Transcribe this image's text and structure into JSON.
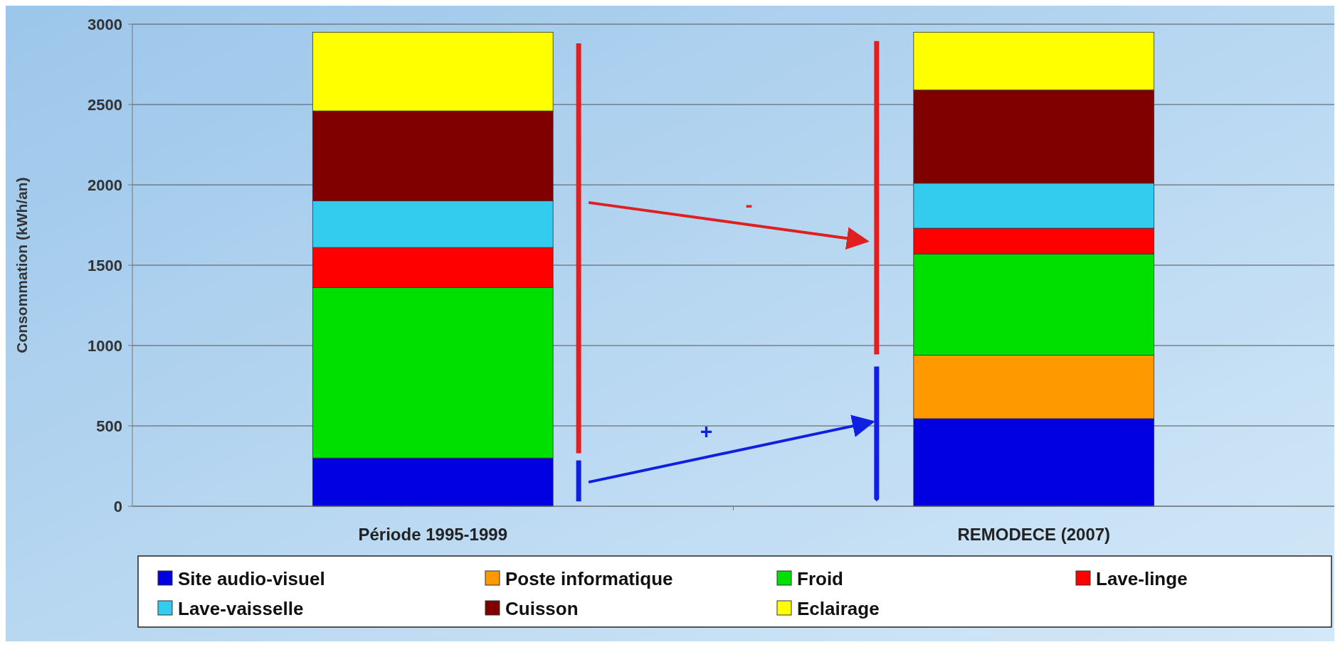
{
  "chart_data": {
    "type": "bar",
    "stacked": true,
    "ylabel": "Consommation (kWh/an)",
    "categories": [
      "Période 1995-1999",
      "REMODECE (2007)"
    ],
    "series": [
      {
        "name": "Site audio-visuel",
        "color": "#0000e0",
        "values": [
          300,
          545
        ]
      },
      {
        "name": "Poste informatique",
        "color": "#ff9900",
        "values": [
          0,
          395
        ]
      },
      {
        "name": "Froid",
        "color": "#00e000",
        "values": [
          1060,
          630
        ]
      },
      {
        "name": "Lave-linge",
        "color": "#ff0000",
        "values": [
          250,
          160
        ]
      },
      {
        "name": "Lave-vaisselle",
        "color": "#33ccee",
        "values": [
          290,
          280
        ]
      },
      {
        "name": "Cuisson",
        "color": "#800000",
        "values": [
          560,
          580
        ]
      },
      {
        "name": "Eclairage",
        "color": "#ffff00",
        "values": [
          490,
          360
        ]
      }
    ],
    "ylim": [
      0,
      3000
    ],
    "yticks": [
      0,
      500,
      1000,
      1500,
      2000,
      2500,
      3000
    ],
    "grid": "y",
    "legend": "bottom",
    "annotations": [
      "-",
      "+"
    ]
  }
}
